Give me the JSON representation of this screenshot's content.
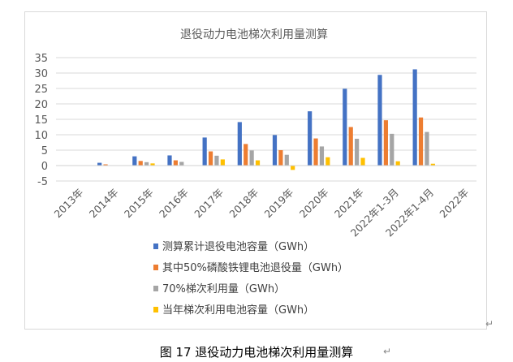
{
  "caption": "图 17  退役动力电池梯次利用量测算",
  "chart_data": {
    "type": "bar",
    "title": "退役动力电池梯次利用量测算",
    "categories": [
      "2013年",
      "2014年",
      "2015年",
      "2016年",
      "2017年",
      "2018年",
      "2019年",
      "2020年",
      "2021年",
      "2022年1-3月",
      "2022年1-4月",
      "2022年"
    ],
    "series": [
      {
        "name": "测算累计退役电池容量（GWh）",
        "color": "#4472C4",
        "values": [
          0,
          0.9,
          3,
          3.3,
          9.1,
          14.1,
          9.9,
          17.6,
          24.9,
          29.4,
          31.2,
          0
        ]
      },
      {
        "name": "其中50%磷酸铁锂电池退役量（GWh）",
        "color": "#ED7D31",
        "values": [
          0,
          0.4,
          1.5,
          1.7,
          4.6,
          7.0,
          5.0,
          8.8,
          12.5,
          14.7,
          15.6,
          0
        ]
      },
      {
        "name": "70%梯次利用量（GWh）",
        "color": "#A5A5A5",
        "values": [
          0,
          0.1,
          1.1,
          1.2,
          3.2,
          4.9,
          3.5,
          6.2,
          8.7,
          10.3,
          10.9,
          0
        ]
      },
      {
        "name": "当年梯次利用电池容量（GWh）",
        "color": "#FFC000",
        "values": [
          0,
          0,
          0.7,
          0.1,
          2.0,
          1.7,
          -1.4,
          2.7,
          2.5,
          1.4,
          0.6,
          0
        ]
      }
    ],
    "yticks": [
      -5,
      0,
      5,
      10,
      15,
      20,
      25,
      30,
      35
    ],
    "ylim": [
      -5,
      35
    ],
    "grid": true,
    "legend": "bottom"
  }
}
